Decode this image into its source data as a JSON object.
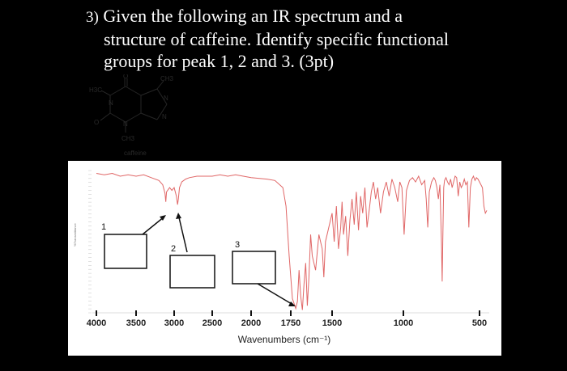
{
  "question": {
    "number": "3)",
    "line1": "Given the following an IR spectrum and a",
    "line2": "structure of caffeine. Identify specific functional",
    "line3": "groups for peak 1, 2 and 3. (3pt)"
  },
  "structure": {
    "caption": "caffeine",
    "atoms": {
      "o_top": "O",
      "o_left": "O",
      "n1": "N",
      "n3": "N",
      "n7": "N",
      "n9": "N",
      "me_left": "H3C",
      "me_top": "CH3",
      "me_bottom": "CH3"
    }
  },
  "chart_data": {
    "type": "line",
    "xlabel": "Wavenumbers (cm⁻¹)",
    "x_ticks": [
      4000,
      3500,
      3000,
      2500,
      2000,
      1750,
      1500,
      1000,
      500
    ],
    "xlim": [
      4000,
      450
    ],
    "ylabel": "%Transmittance",
    "series_color": "#e06666",
    "answer_boxes": 3,
    "peaks": [
      {
        "label": "1",
        "wavenumber": 3110
      },
      {
        "label": "2",
        "wavenumber": 2950
      },
      {
        "label": "3",
        "wavenumber": 1700
      }
    ],
    "x": [
      4000,
      3900,
      3800,
      3700,
      3600,
      3500,
      3400,
      3300,
      3200,
      3150,
      3120,
      3110,
      3100,
      3060,
      3030,
      3000,
      2970,
      2955,
      2945,
      2930,
      2900,
      2850,
      2800,
      2700,
      2600,
      2500,
      2400,
      2300,
      2200,
      2100,
      2000,
      1900,
      1850,
      1800,
      1780,
      1760,
      1740,
      1720,
      1710,
      1700,
      1690,
      1680,
      1670,
      1660,
      1650,
      1640,
      1630,
      1620,
      1600,
      1580,
      1560,
      1550,
      1540,
      1520,
      1500,
      1485,
      1470,
      1455,
      1440,
      1430,
      1420,
      1405,
      1390,
      1375,
      1360,
      1345,
      1330,
      1315,
      1300,
      1285,
      1270,
      1255,
      1240,
      1225,
      1210,
      1195,
      1180,
      1160,
      1140,
      1120,
      1100,
      1080,
      1060,
      1040,
      1025,
      1010,
      995,
      980,
      960,
      940,
      920,
      900,
      880,
      860,
      850,
      840,
      830,
      815,
      800,
      790,
      780,
      770,
      760,
      750,
      745,
      740,
      735,
      730,
      720,
      710,
      700,
      690,
      680,
      670,
      660,
      650,
      640,
      630,
      620,
      610,
      600,
      590,
      580,
      570,
      560,
      550,
      540,
      530,
      520,
      510,
      500,
      490,
      480,
      470,
      460,
      450
    ],
    "y": [
      98,
      97,
      98,
      96,
      97,
      96,
      97,
      95,
      93,
      90,
      84,
      78,
      85,
      88,
      86,
      88,
      82,
      76,
      80,
      88,
      92,
      94,
      95,
      96,
      96,
      96,
      97,
      96,
      97,
      96,
      95,
      94,
      93,
      88,
      75,
      40,
      10,
      3,
      8,
      30,
      12,
      2,
      20,
      35,
      5,
      25,
      55,
      40,
      30,
      55,
      45,
      25,
      50,
      60,
      70,
      50,
      75,
      45,
      60,
      78,
      55,
      68,
      40,
      65,
      80,
      62,
      85,
      58,
      82,
      70,
      88,
      60,
      72,
      85,
      92,
      80,
      88,
      70,
      85,
      92,
      82,
      94,
      88,
      78,
      92,
      88,
      55,
      86,
      93,
      95,
      92,
      96,
      90,
      93,
      80,
      60,
      85,
      92,
      95,
      93,
      88,
      80,
      90,
      50,
      22,
      60,
      88,
      93,
      95,
      92,
      90,
      94,
      88,
      92,
      96,
      95,
      82,
      92,
      88,
      90,
      94,
      90,
      92,
      60,
      88,
      94,
      96,
      93,
      95,
      94,
      92,
      90,
      88,
      75,
      70,
      72
    ]
  }
}
